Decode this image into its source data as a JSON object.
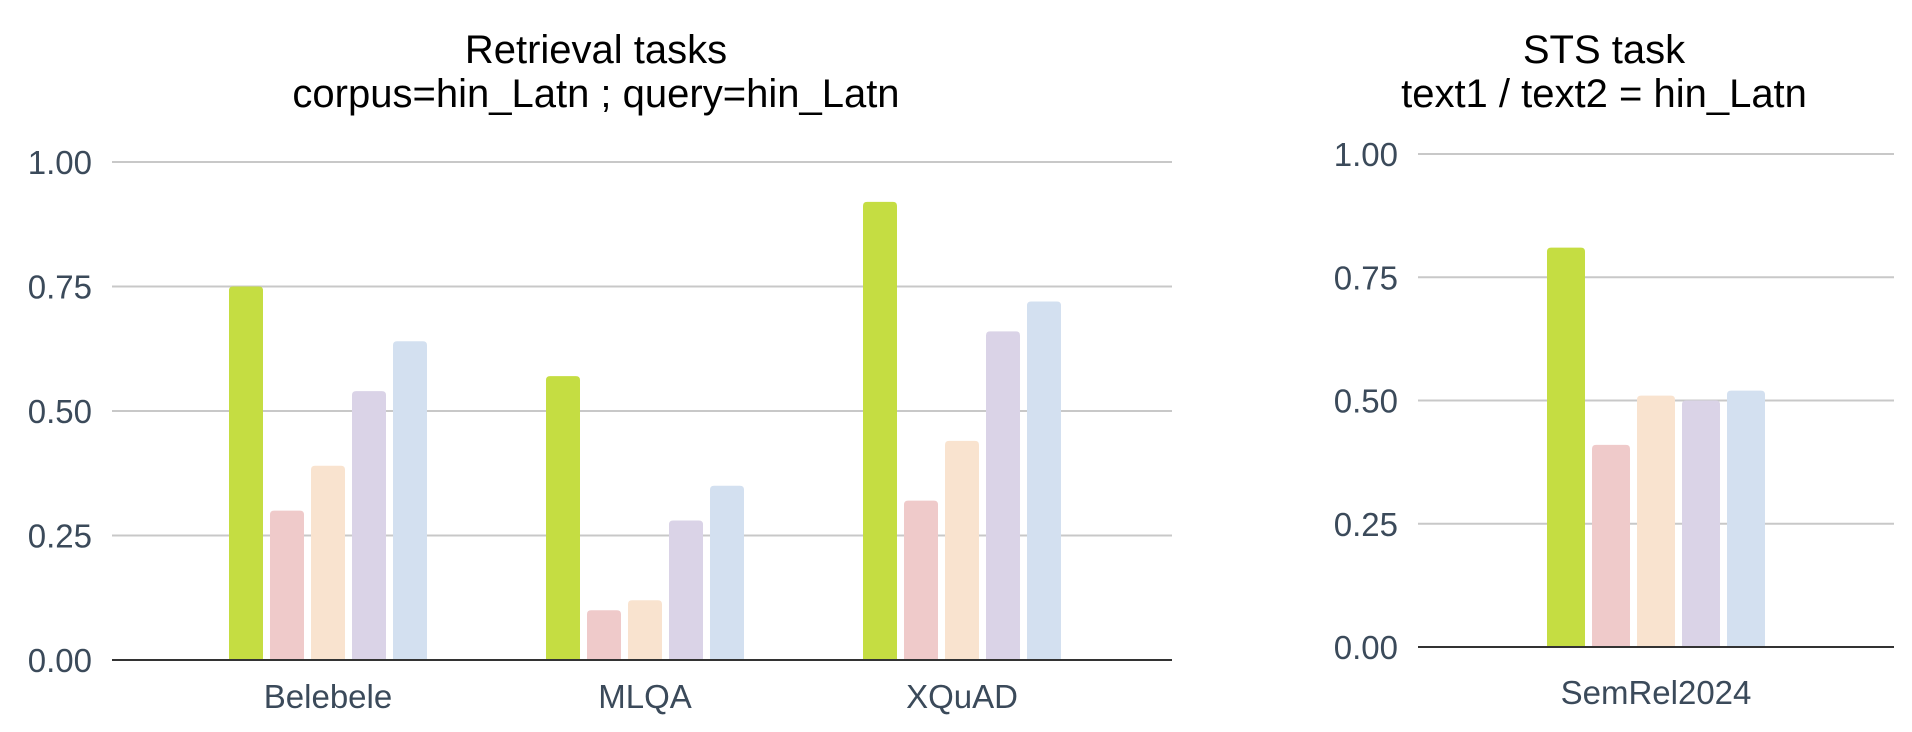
{
  "colors": [
    "#c5dd42",
    "#efcaca",
    "#f9e3cf",
    "#dad3e7",
    "#d3e0f0"
  ],
  "chart_data": [
    {
      "type": "bar",
      "title": "Retrieval tasks",
      "subtitle": "corpus=hin_Latn ; query=hin_Latn",
      "xlabel": "",
      "ylabel": "",
      "ylim": [
        0,
        1
      ],
      "yticks": [
        "0.00",
        "0.25",
        "0.50",
        "0.75",
        "1.00"
      ],
      "grid": true,
      "legend": "none",
      "categories": [
        "Belebele",
        "MLQA",
        "XQuAD"
      ],
      "series": [
        {
          "values": [
            0.75,
            0.57,
            0.92
          ]
        },
        {
          "values": [
            0.3,
            0.1,
            0.32
          ]
        },
        {
          "values": [
            0.39,
            0.12,
            0.44
          ]
        },
        {
          "values": [
            0.54,
            0.28,
            0.66
          ]
        },
        {
          "values": [
            0.64,
            0.35,
            0.72
          ]
        }
      ]
    },
    {
      "type": "bar",
      "title": "STS task",
      "subtitle": "text1 / text2 = hin_Latn",
      "xlabel": "",
      "ylabel": "",
      "ylim": [
        0,
        1
      ],
      "yticks": [
        "0.00",
        "0.25",
        "0.50",
        "0.75",
        "1.00"
      ],
      "grid": true,
      "legend": "none",
      "categories": [
        "SemRel2024"
      ],
      "series": [
        {
          "values": [
            0.81
          ]
        },
        {
          "values": [
            0.41
          ]
        },
        {
          "values": [
            0.51
          ]
        },
        {
          "values": [
            0.5
          ]
        },
        {
          "values": [
            0.52
          ]
        }
      ]
    }
  ]
}
